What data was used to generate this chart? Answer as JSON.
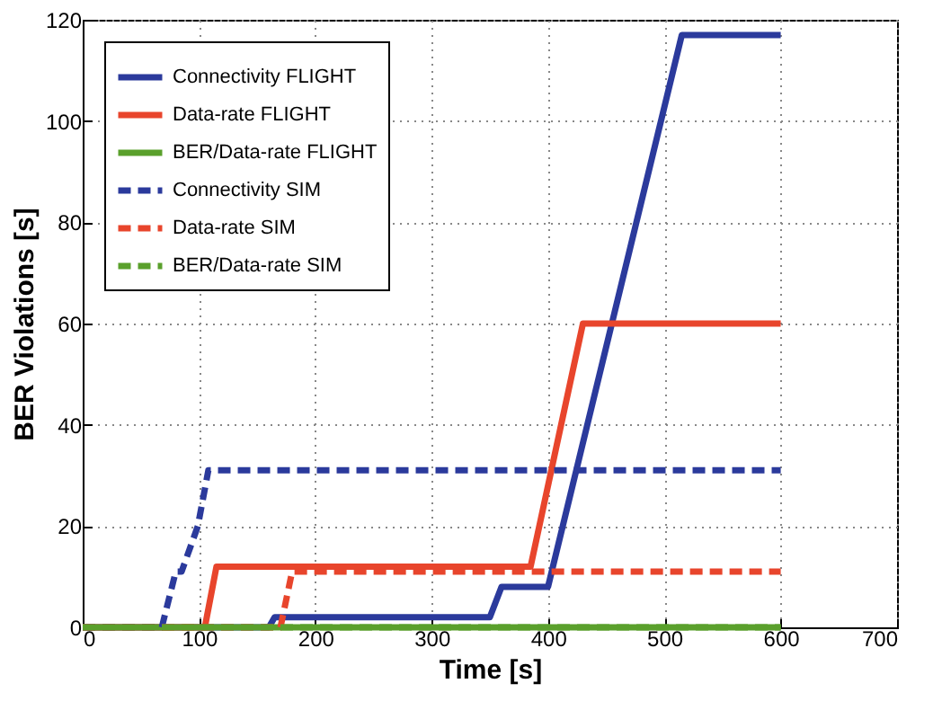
{
  "chart_data": {
    "type": "line",
    "xlabel": "Time [s]",
    "ylabel": "BER Violations [s]",
    "xlim": [
      0,
      700
    ],
    "xticks": [
      0,
      100,
      200,
      300,
      400,
      500,
      600,
      700
    ],
    "ylim": [
      0,
      120
    ],
    "yticks": [
      0,
      20,
      40,
      60,
      80,
      100,
      120
    ],
    "grid": true,
    "legend": "top left",
    "series": [
      {
        "name": "Connectivity FLIGHT",
        "color": "#2b3a9c",
        "line_style": "solid",
        "x": [
          0,
          160,
          165,
          350,
          360,
          400,
          515,
          600
        ],
        "values": [
          0,
          0,
          2,
          2,
          8,
          8,
          117,
          117
        ]
      },
      {
        "name": "Data-rate FLIGHT",
        "color": "#e8452c",
        "line_style": "solid",
        "x": [
          0,
          105,
          115,
          385,
          430,
          600
        ],
        "values": [
          0,
          0,
          12,
          12,
          60,
          60
        ]
      },
      {
        "name": "BER/Data-rate FLIGHT",
        "color": "#5aa02c",
        "line_style": "solid",
        "x": [
          0,
          600
        ],
        "values": [
          0,
          0
        ]
      },
      {
        "name": "Connectivity SIM",
        "color": "#2b3a9c",
        "line_style": "dashed",
        "x": [
          0,
          68,
          80,
          85,
          99,
          108,
          600
        ],
        "values": [
          0,
          0,
          11,
          11,
          20,
          31,
          31
        ]
      },
      {
        "name": "Data-rate SIM",
        "color": "#e8452c",
        "line_style": "dashed",
        "x": [
          0,
          170,
          180,
          600
        ],
        "values": [
          0,
          0,
          11,
          11
        ]
      },
      {
        "name": "BER/Data-rate SIM",
        "color": "#5aa02c",
        "line_style": "dashed",
        "x": [
          0,
          600
        ],
        "values": [
          0,
          0
        ]
      }
    ]
  }
}
